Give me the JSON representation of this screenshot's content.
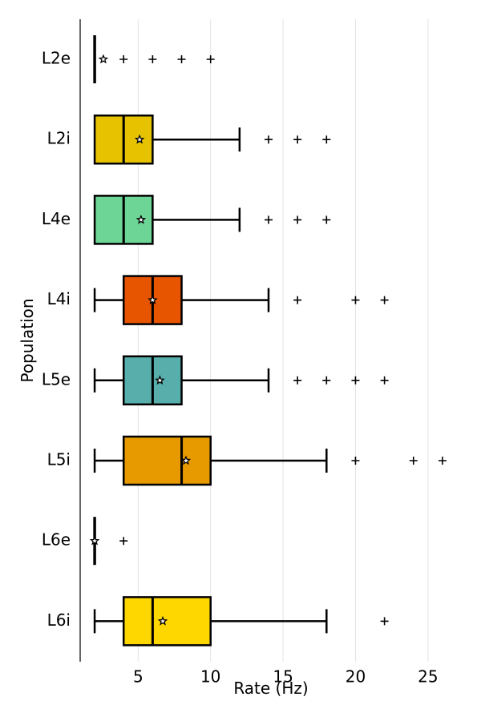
{
  "chart_data": {
    "type": "boxplot",
    "orientation": "horizontal",
    "xlabel": "Rate (Hz)",
    "ylabel": "Population",
    "xlim": [
      1,
      27
    ],
    "xticks": [
      5,
      10,
      15,
      20,
      25
    ],
    "grid": "vertical",
    "categories": [
      "L2e",
      "L2i",
      "L4e",
      "L4i",
      "L5e",
      "L5i",
      "L6e",
      "L6i"
    ],
    "boxes": [
      {
        "label": "L2e",
        "color": "#000000",
        "whislo": 2,
        "q1": 2,
        "med": 2,
        "q3": 2,
        "whishi": 2,
        "mean": 2.6,
        "fliers": [
          4,
          6,
          8,
          10
        ]
      },
      {
        "label": "L2i",
        "color": "#e6c200",
        "whislo": 2,
        "q1": 2,
        "med": 4,
        "q3": 6,
        "whishi": 12,
        "mean": 5.1,
        "fliers": [
          14,
          16,
          18
        ]
      },
      {
        "label": "L4e",
        "color": "#6dd697",
        "whislo": 2,
        "q1": 2,
        "med": 4,
        "q3": 6,
        "whishi": 12,
        "mean": 5.2,
        "fliers": [
          14,
          16,
          18
        ]
      },
      {
        "label": "L4i",
        "color": "#e85500",
        "whislo": 2,
        "q1": 4,
        "med": 6,
        "q3": 8,
        "whishi": 14,
        "mean": 6.0,
        "fliers": [
          16,
          20,
          22
        ]
      },
      {
        "label": "L5e",
        "color": "#57aeaa",
        "whislo": 2,
        "q1": 4,
        "med": 6,
        "q3": 8,
        "whishi": 14,
        "mean": 6.5,
        "fliers": [
          16,
          18,
          20,
          22
        ]
      },
      {
        "label": "L5i",
        "color": "#e69a00",
        "whislo": 2,
        "q1": 4,
        "med": 8,
        "q3": 10,
        "whishi": 18,
        "mean": 8.3,
        "fliers": [
          20,
          24,
          26
        ]
      },
      {
        "label": "L6e",
        "color": "#000000",
        "whislo": 2,
        "q1": 2,
        "med": 2,
        "q3": 2,
        "whishi": 2,
        "mean": 2.0,
        "fliers": [
          4
        ]
      },
      {
        "label": "L6i",
        "color": "#ffd700",
        "whislo": 2,
        "q1": 4,
        "med": 6,
        "q3": 10,
        "whishi": 18,
        "mean": 6.7,
        "fliers": [
          22
        ]
      }
    ]
  }
}
